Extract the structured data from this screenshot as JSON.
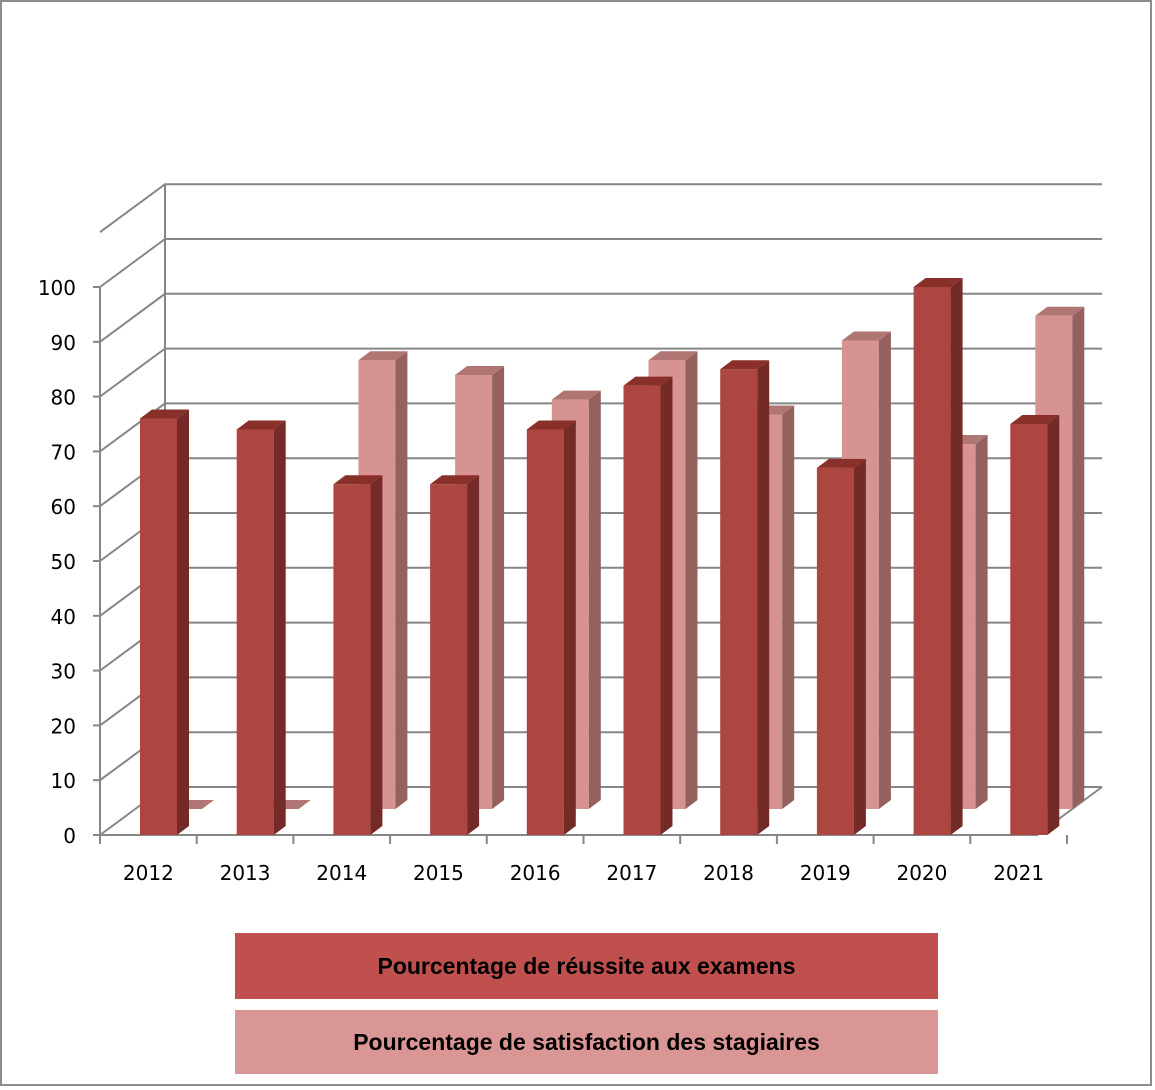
{
  "chart_data": {
    "type": "bar",
    "title": "",
    "xlabel": "",
    "ylabel": "",
    "categories": [
      "2012",
      "2013",
      "2014",
      "2015",
      "2016",
      "2017",
      "2018",
      "2019",
      "2020",
      "2021"
    ],
    "y_ticks": [
      "0",
      "10",
      "20",
      "30",
      "40",
      "50",
      "60",
      "70",
      "80",
      "90",
      "100"
    ],
    "ylim": [
      0,
      100
    ],
    "grid": true,
    "legend_placement": "bottom",
    "series": [
      {
        "name": "Pourcentage de réussite aux examens",
        "color": "#c0504d",
        "values": [
          76,
          74,
          64,
          64,
          74,
          82,
          85,
          67,
          100,
          75
        ]
      },
      {
        "name": "Pourcentage de satisfaction des stagiaires",
        "color": "#d99694",
        "values": [
          0,
          0,
          91,
          88,
          83,
          91,
          80,
          95,
          74,
          100
        ]
      }
    ]
  }
}
